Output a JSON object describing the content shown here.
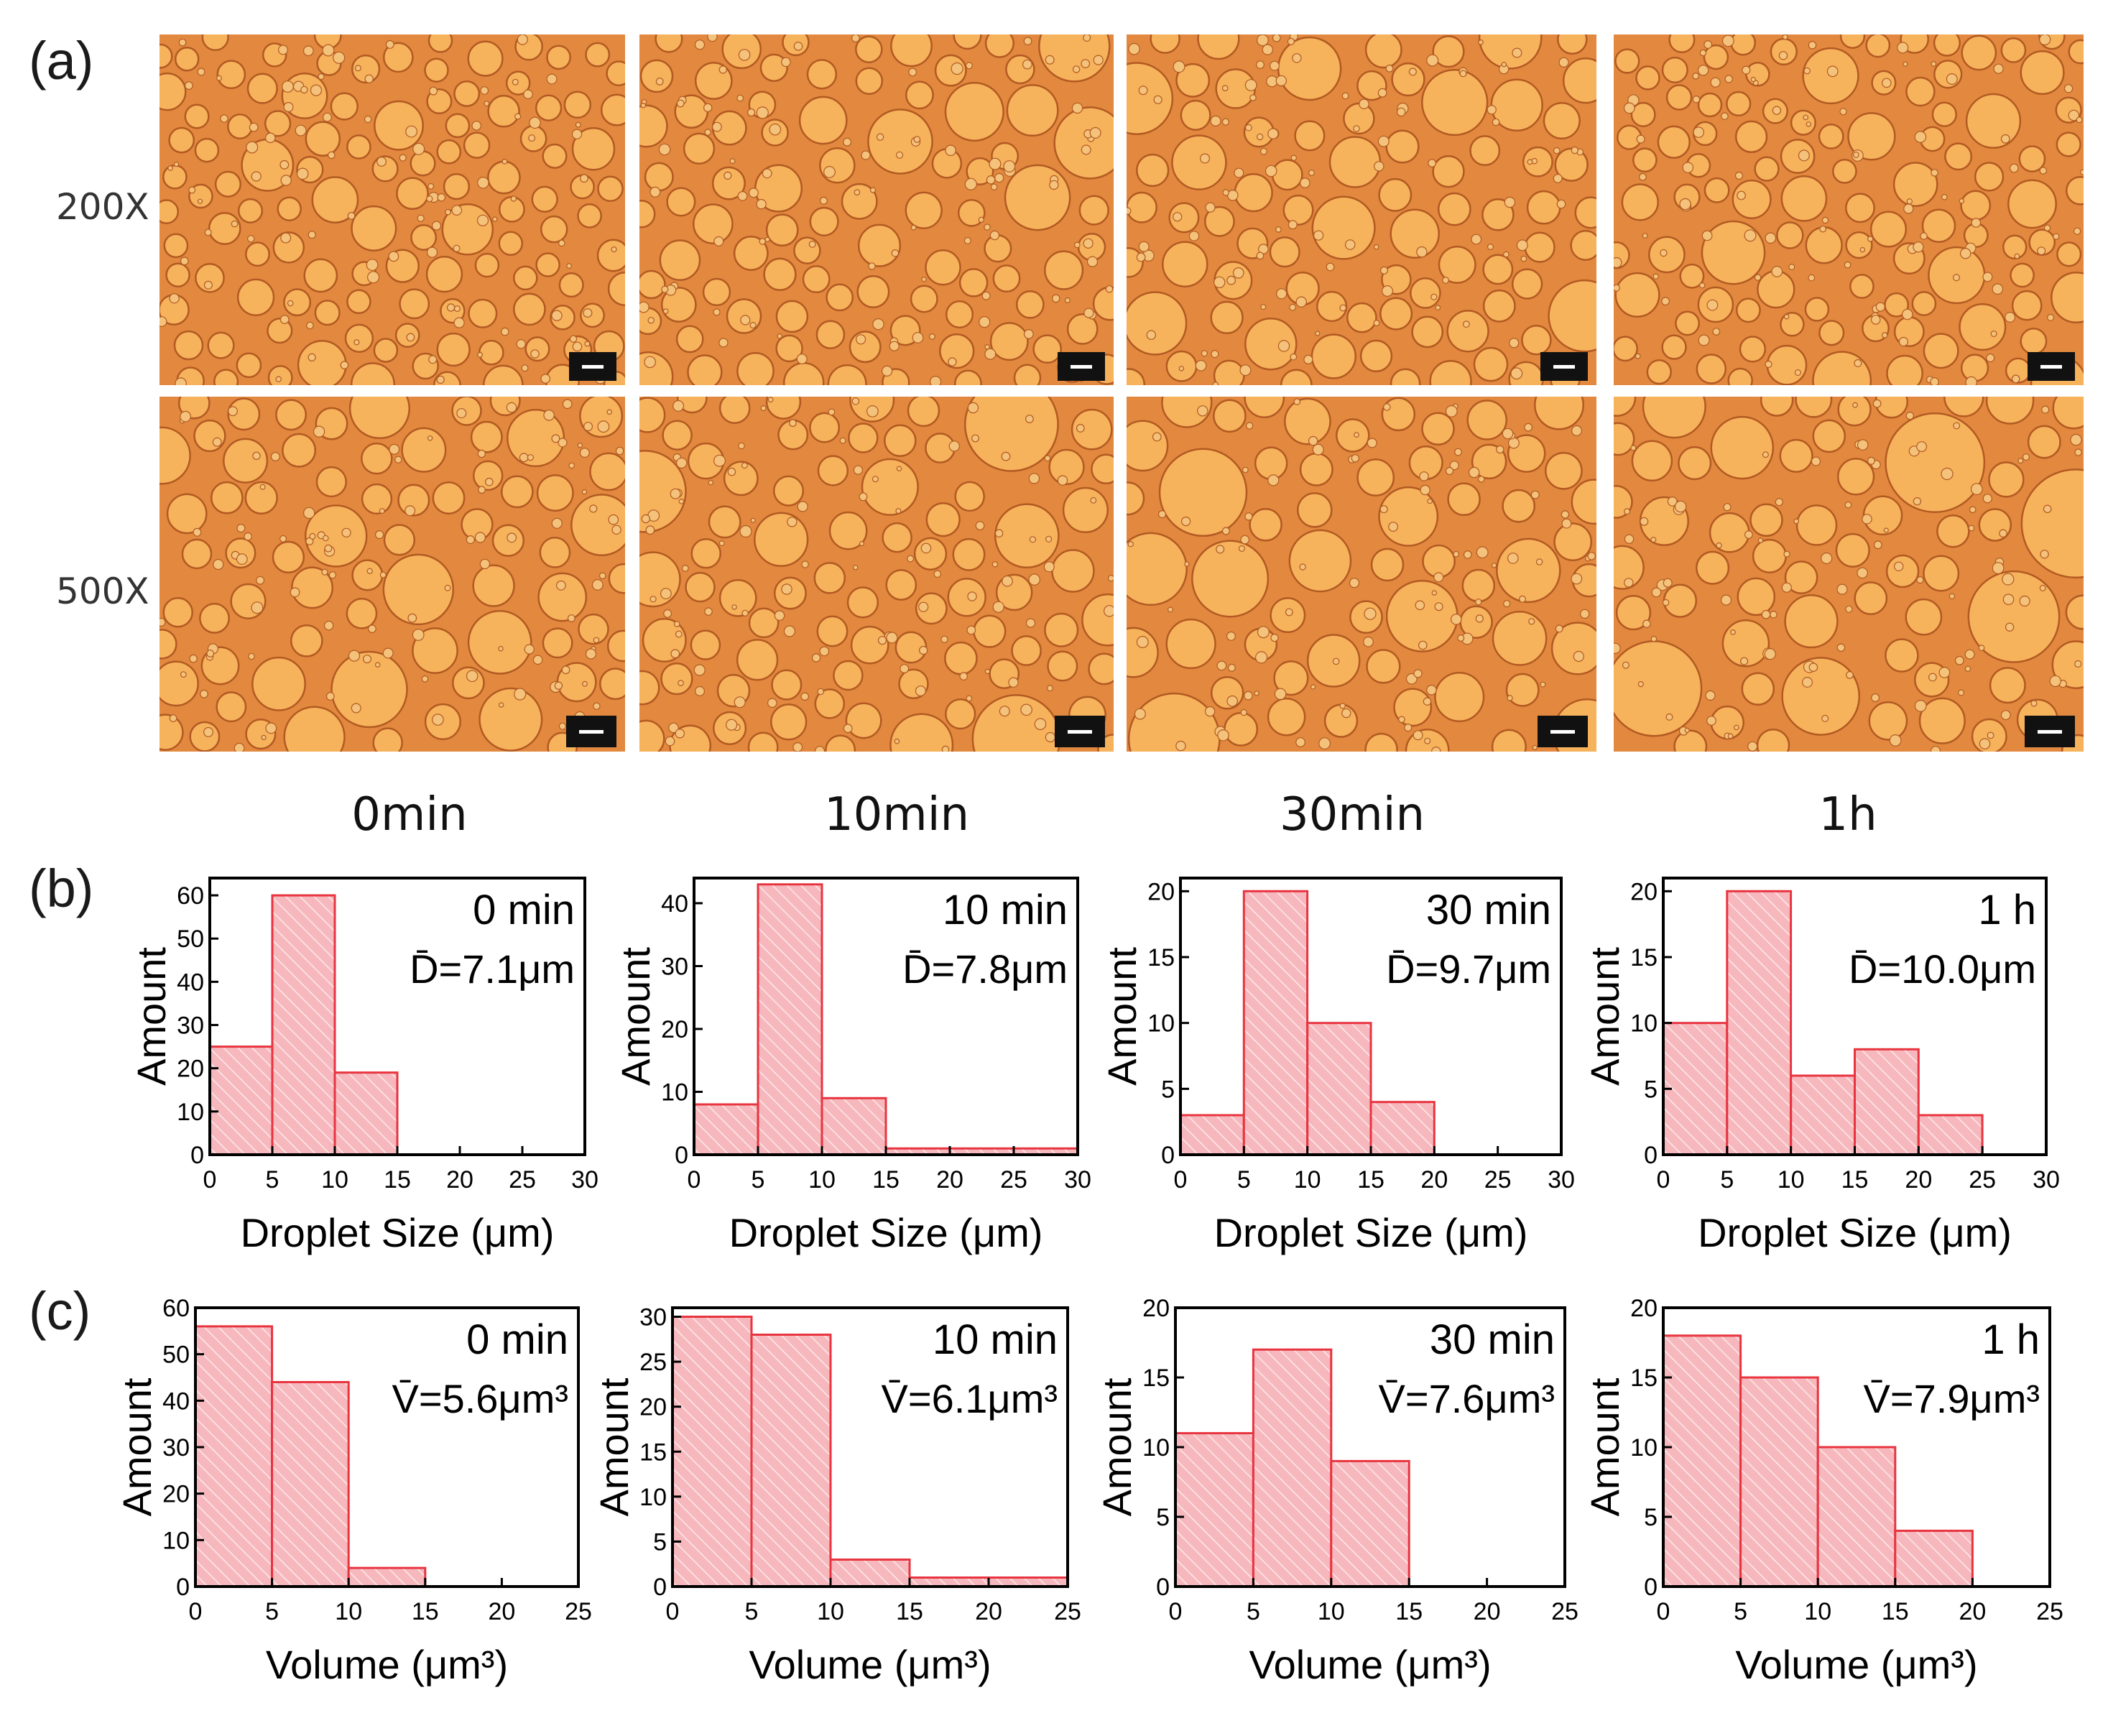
{
  "figure": {
    "panel_a_label": "(a)",
    "panel_b_label": "(b)",
    "panel_c_label": "(c)"
  },
  "micrographs": {
    "rows": [
      "200X",
      "500X"
    ],
    "columns": [
      "0min",
      "10min",
      "30min",
      "1h"
    ]
  },
  "colors": {
    "bar_fill": "#f6b7bd",
    "bar_stroke": "#e8343f",
    "hatch": "#ffffff",
    "droplet_bg": "#e2893f",
    "droplet_fill": "#f7b25c",
    "droplet_rim": "#b25a22",
    "scale_bar": "#111111"
  },
  "chart_data": [
    {
      "id": "b0",
      "type": "bar",
      "panel": "b",
      "title": "0 min",
      "stat": "D̄=7.1μm",
      "xlabel": "Droplet Size (μm)",
      "ylabel": "Amount",
      "bin_edges": [
        0,
        5,
        10,
        15
      ],
      "values": [
        25,
        60,
        19
      ],
      "xlim": [
        0,
        30
      ],
      "xticks": [
        0,
        5,
        10,
        15,
        20,
        25,
        30
      ],
      "ylim": [
        0,
        64
      ],
      "yticks": [
        0,
        10,
        20,
        30,
        40,
        50,
        60
      ]
    },
    {
      "id": "b1",
      "type": "bar",
      "panel": "b",
      "title": "10 min",
      "stat": "D̄=7.8μm",
      "xlabel": "Droplet Size (μm)",
      "ylabel": "Amount",
      "bin_edges": [
        0,
        5,
        10,
        15,
        20,
        25,
        30
      ],
      "values": [
        8,
        43,
        9,
        1,
        1,
        1
      ],
      "xlim": [
        0,
        30
      ],
      "xticks": [
        0,
        5,
        10,
        15,
        20,
        25,
        30
      ],
      "ylim": [
        0,
        44
      ],
      "yticks": [
        0,
        10,
        20,
        30,
        40
      ]
    },
    {
      "id": "b2",
      "type": "bar",
      "panel": "b",
      "title": "30 min",
      "stat": "D̄=9.7μm",
      "xlabel": "Droplet Size (μm)",
      "ylabel": "Amount",
      "bin_edges": [
        0,
        5,
        10,
        15,
        20
      ],
      "values": [
        3,
        20,
        10,
        4
      ],
      "xlim": [
        0,
        30
      ],
      "xticks": [
        0,
        5,
        10,
        15,
        20,
        25,
        30
      ],
      "ylim": [
        0,
        21
      ],
      "yticks": [
        0,
        5,
        10,
        15,
        20
      ]
    },
    {
      "id": "b3",
      "type": "bar",
      "panel": "b",
      "title": "1 h",
      "stat": "D̄=10.0μm",
      "xlabel": "Droplet Size (μm)",
      "ylabel": "Amount",
      "bin_edges": [
        0,
        5,
        10,
        15,
        20,
        25
      ],
      "values": [
        10,
        20,
        6,
        8,
        3
      ],
      "xlim": [
        0,
        30
      ],
      "xticks": [
        0,
        5,
        10,
        15,
        20,
        25,
        30
      ],
      "ylim": [
        0,
        21
      ],
      "yticks": [
        0,
        5,
        10,
        15,
        20
      ]
    },
    {
      "id": "c0",
      "type": "bar",
      "panel": "c",
      "title": "0 min",
      "stat": "V̄=5.6μm³",
      "xlabel": "Volume (μm³)",
      "ylabel": "Amount",
      "bin_edges": [
        0,
        5,
        10,
        15
      ],
      "values": [
        56,
        44,
        4
      ],
      "xlim": [
        0,
        25
      ],
      "xticks": [
        0,
        5,
        10,
        15,
        20,
        25
      ],
      "ylim": [
        0,
        60
      ],
      "yticks": [
        0,
        10,
        20,
        30,
        40,
        50,
        60
      ]
    },
    {
      "id": "c1",
      "type": "bar",
      "panel": "c",
      "title": "10 min",
      "stat": "V̄=6.1μm³",
      "xlabel": "Volume (μm³)",
      "ylabel": "Amount",
      "bin_edges": [
        0,
        5,
        10,
        15,
        20,
        25
      ],
      "values": [
        30,
        28,
        3,
        1,
        1
      ],
      "xlim": [
        0,
        25
      ],
      "xticks": [
        0,
        5,
        10,
        15,
        20,
        25
      ],
      "ylim": [
        0,
        31
      ],
      "yticks": [
        0,
        5,
        10,
        15,
        20,
        25,
        30
      ]
    },
    {
      "id": "c2",
      "type": "bar",
      "panel": "c",
      "title": "30 min",
      "stat": "V̄=7.6μm³",
      "xlabel": "Volume (μm³)",
      "ylabel": "Amount",
      "bin_edges": [
        0,
        5,
        10,
        15
      ],
      "values": [
        11,
        17,
        9
      ],
      "xlim": [
        0,
        25
      ],
      "xticks": [
        0,
        5,
        10,
        15,
        20,
        25
      ],
      "ylim": [
        0,
        20
      ],
      "yticks": [
        0,
        5,
        10,
        15,
        20
      ]
    },
    {
      "id": "c3",
      "type": "bar",
      "panel": "c",
      "title": "1 h",
      "stat": "V̄=7.9μm³",
      "xlabel": "Volume (μm³)",
      "ylabel": "Amount",
      "bin_edges": [
        0,
        5,
        10,
        15,
        20
      ],
      "values": [
        18,
        15,
        10,
        4
      ],
      "xlim": [
        0,
        25
      ],
      "xticks": [
        0,
        5,
        10,
        15,
        20,
        25
      ],
      "ylim": [
        0,
        20
      ],
      "yticks": [
        0,
        5,
        10,
        15,
        20
      ]
    }
  ]
}
